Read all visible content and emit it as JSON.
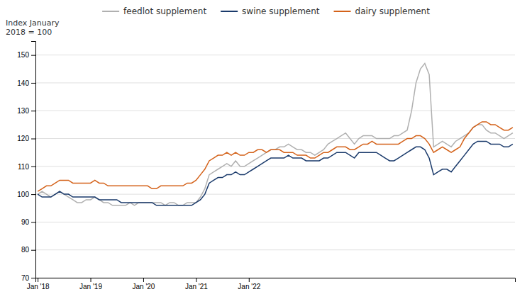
{
  "chart_data": {
    "type": "line",
    "y_label": [
      "Index January",
      "2018 = 100"
    ],
    "categories": [
      "Jan '18",
      null,
      null,
      null,
      null,
      null,
      null,
      null,
      null,
      null,
      null,
      null,
      "Jan '19",
      null,
      null,
      null,
      null,
      null,
      null,
      null,
      null,
      null,
      null,
      null,
      "Jan '20",
      null,
      null,
      null,
      null,
      null,
      null,
      null,
      null,
      null,
      null,
      null,
      "Jan '21",
      null,
      null,
      null,
      null,
      null,
      null,
      null,
      null,
      null,
      null,
      null,
      "Jan '22",
      null,
      null,
      null,
      null,
      null,
      null,
      null,
      null,
      null,
      null,
      null,
      null,
      null,
      null,
      null,
      null,
      null,
      null,
      null,
      null,
      null,
      null,
      null,
      null,
      null,
      null,
      null,
      null,
      null,
      null,
      null,
      null,
      null,
      null,
      null,
      null,
      null,
      null,
      null,
      null,
      null,
      null,
      null,
      null,
      null,
      null,
      null,
      null,
      null,
      null,
      null,
      null,
      null,
      null,
      null,
      null,
      null,
      null,
      null,
      null
    ],
    "ylim": [
      70,
      155
    ],
    "yticks": [
      70,
      80,
      90,
      100,
      110,
      120,
      130,
      140,
      150
    ],
    "grid": true,
    "legend": "top",
    "series": [
      {
        "name": "feedlot supplement",
        "color": "#b0b0b0",
        "values": [
          100,
          101,
          100,
          99,
          100,
          101,
          100,
          99,
          98,
          97,
          97,
          98,
          98,
          99,
          98,
          97,
          97,
          96,
          96,
          96,
          96,
          97,
          96,
          97,
          97,
          97,
          97,
          97,
          97,
          96,
          97,
          97,
          96,
          96,
          97,
          97,
          97,
          99,
          102,
          107,
          108,
          109,
          110,
          111,
          110,
          112,
          110,
          110,
          111,
          112,
          113,
          114,
          115,
          116,
          116,
          117,
          117,
          118,
          117,
          116,
          116,
          115,
          115,
          114,
          115,
          116,
          118,
          119,
          120,
          121,
          122,
          120,
          118,
          120,
          121,
          121,
          121,
          120,
          120,
          120,
          120,
          121,
          121,
          122,
          123,
          130,
          140,
          145,
          147,
          143,
          117,
          118,
          119,
          118,
          117,
          119,
          120,
          121,
          122,
          124,
          125,
          125,
          123,
          122,
          122,
          121,
          120,
          121,
          122
        ]
      },
      {
        "name": "swine supplement",
        "color": "#1a3a6b",
        "values": [
          100,
          99,
          99,
          99,
          100,
          101,
          100,
          100,
          99,
          99,
          99,
          99,
          99,
          99,
          98,
          98,
          98,
          98,
          98,
          97,
          97,
          97,
          97,
          97,
          97,
          97,
          97,
          96,
          96,
          96,
          96,
          96,
          96,
          96,
          96,
          96,
          97,
          98,
          100,
          104,
          105,
          106,
          106,
          107,
          107,
          108,
          107,
          107,
          108,
          109,
          110,
          111,
          112,
          113,
          113,
          113,
          113,
          114,
          113,
          113,
          113,
          112,
          112,
          112,
          112,
          113,
          113,
          114,
          115,
          115,
          115,
          114,
          113,
          115,
          115,
          115,
          115,
          115,
          114,
          113,
          112,
          112,
          113,
          114,
          115,
          116,
          117,
          117,
          116,
          113,
          107,
          108,
          109,
          109,
          108,
          110,
          112,
          114,
          116,
          118,
          119,
          119,
          119,
          118,
          118,
          118,
          117,
          117,
          118
        ]
      },
      {
        "name": "dairy supplement",
        "color": "#d4621a",
        "values": [
          101,
          102,
          103,
          103,
          104,
          105,
          105,
          105,
          104,
          104,
          104,
          104,
          104,
          105,
          104,
          104,
          103,
          103,
          103,
          103,
          103,
          103,
          103,
          103,
          103,
          103,
          102,
          102,
          103,
          103,
          103,
          103,
          103,
          103,
          104,
          104,
          105,
          107,
          109,
          112,
          113,
          114,
          114,
          115,
          114,
          115,
          114,
          114,
          115,
          115,
          116,
          116,
          115,
          116,
          116,
          116,
          115,
          115,
          115,
          114,
          114,
          114,
          113,
          113,
          114,
          115,
          115,
          116,
          117,
          117,
          117,
          116,
          116,
          117,
          118,
          118,
          119,
          118,
          118,
          118,
          118,
          118,
          118,
          119,
          120,
          120,
          121,
          121,
          120,
          118,
          115,
          116,
          117,
          116,
          115,
          116,
          117,
          120,
          122,
          124,
          125,
          126,
          126,
          125,
          125,
          124,
          123,
          123,
          124
        ]
      }
    ]
  }
}
